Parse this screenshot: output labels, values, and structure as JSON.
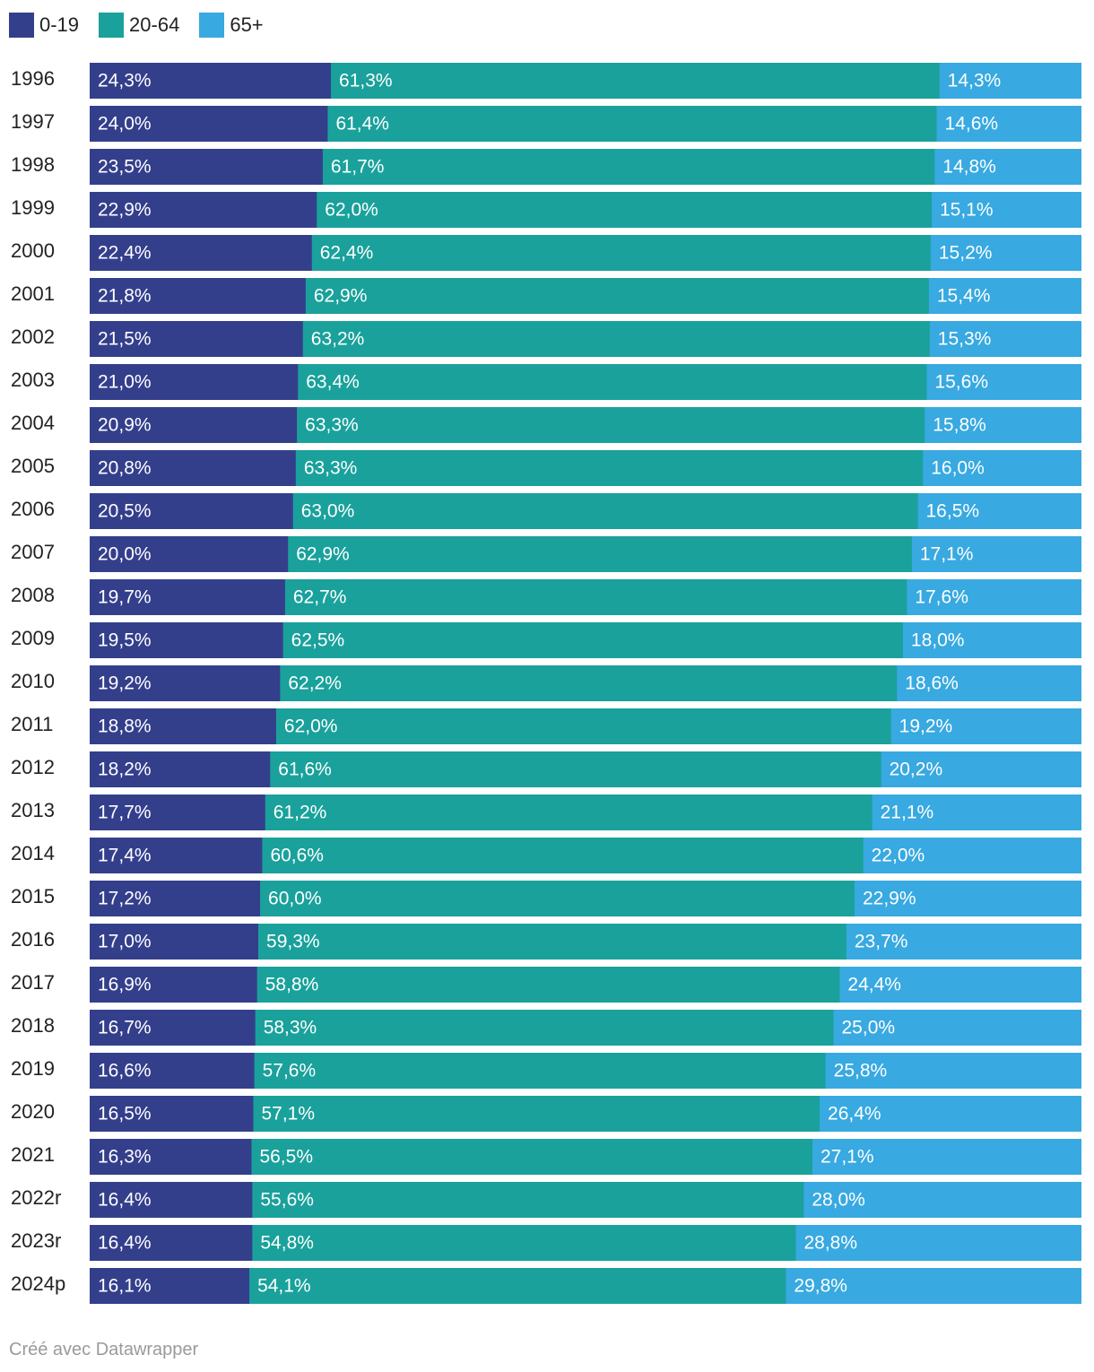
{
  "footer": {
    "credit": "Créé avec Datawrapper"
  },
  "chart_data": {
    "type": "bar",
    "orientation": "horizontal",
    "stacked": true,
    "normalized_percent": true,
    "title": "",
    "xlabel": "",
    "ylabel": "",
    "xlim": [
      0,
      100
    ],
    "grid": false,
    "legend_position": "top-left",
    "categories": [
      "1996",
      "1997",
      "1998",
      "1999",
      "2000",
      "2001",
      "2002",
      "2003",
      "2004",
      "2005",
      "2006",
      "2007",
      "2008",
      "2009",
      "2010",
      "2011",
      "2012",
      "2013",
      "2014",
      "2015",
      "2016",
      "2017",
      "2018",
      "2019",
      "2020",
      "2021",
      "2022r",
      "2023r",
      "2024p"
    ],
    "series": [
      {
        "name": "0-19",
        "color": "#343f8c",
        "values": [
          24.3,
          24.0,
          23.5,
          22.9,
          22.4,
          21.8,
          21.5,
          21.0,
          20.9,
          20.8,
          20.5,
          20.0,
          19.7,
          19.5,
          19.2,
          18.8,
          18.2,
          17.7,
          17.4,
          17.2,
          17.0,
          16.9,
          16.7,
          16.6,
          16.5,
          16.3,
          16.4,
          16.4,
          16.1
        ],
        "labels": [
          "24,3%",
          "24,0%",
          "23,5%",
          "22,9%",
          "22,4%",
          "21,8%",
          "21,5%",
          "21,0%",
          "20,9%",
          "20,8%",
          "20,5%",
          "20,0%",
          "19,7%",
          "19,5%",
          "19,2%",
          "18,8%",
          "18,2%",
          "17,7%",
          "17,4%",
          "17,2%",
          "17,0%",
          "16,9%",
          "16,7%",
          "16,6%",
          "16,5%",
          "16,3%",
          "16,4%",
          "16,4%",
          "16,1%"
        ]
      },
      {
        "name": "20-64",
        "color": "#1aa19b",
        "values": [
          61.3,
          61.4,
          61.7,
          62.0,
          62.4,
          62.9,
          63.2,
          63.4,
          63.3,
          63.3,
          63.0,
          62.9,
          62.7,
          62.5,
          62.2,
          62.0,
          61.6,
          61.2,
          60.6,
          60.0,
          59.3,
          58.8,
          58.3,
          57.6,
          57.1,
          56.5,
          55.6,
          54.8,
          54.1
        ],
        "labels": [
          "61,3%",
          "61,4%",
          "61,7%",
          "62,0%",
          "62,4%",
          "62,9%",
          "63,2%",
          "63,4%",
          "63,3%",
          "63,3%",
          "63,0%",
          "62,9%",
          "62,7%",
          "62,5%",
          "62,2%",
          "62,0%",
          "61,6%",
          "61,2%",
          "60,6%",
          "60,0%",
          "59,3%",
          "58,8%",
          "58,3%",
          "57,6%",
          "57,1%",
          "56,5%",
          "55,6%",
          "54,8%",
          "54,1%"
        ]
      },
      {
        "name": "65+",
        "color": "#38a9e1",
        "values": [
          14.3,
          14.6,
          14.8,
          15.1,
          15.2,
          15.4,
          15.3,
          15.6,
          15.8,
          16.0,
          16.5,
          17.1,
          17.6,
          18.0,
          18.6,
          19.2,
          20.2,
          21.1,
          22.0,
          22.9,
          23.7,
          24.4,
          25.0,
          25.8,
          26.4,
          27.1,
          28.0,
          28.8,
          29.8
        ],
        "labels": [
          "14,3%",
          "14,6%",
          "14,8%",
          "15,1%",
          "15,2%",
          "15,4%",
          "15,3%",
          "15,6%",
          "15,8%",
          "16,0%",
          "16,5%",
          "17,1%",
          "17,6%",
          "18,0%",
          "18,6%",
          "19,2%",
          "20,2%",
          "21,1%",
          "22,0%",
          "22,9%",
          "23,7%",
          "24,4%",
          "25,0%",
          "25,8%",
          "26,4%",
          "27,1%",
          "28,0%",
          "28,8%",
          "29,8%"
        ]
      }
    ]
  }
}
